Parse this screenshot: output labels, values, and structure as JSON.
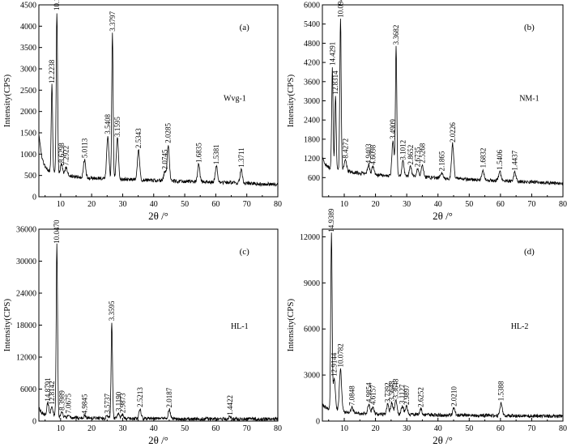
{
  "chart_data": [
    {
      "type": "line",
      "panel_label": "(a)",
      "sample_label": "Wvg-1",
      "xlabel": "2θ /°",
      "ylabel": "Intensity(CPS)",
      "xlim": [
        3,
        80
      ],
      "ylim": [
        0,
        4500
      ],
      "x_ticks": [
        10,
        20,
        30,
        40,
        50,
        60,
        70,
        80
      ],
      "y_ticks": [
        0,
        500,
        1000,
        1500,
        2000,
        2500,
        3000,
        3500,
        4000,
        4500
      ],
      "baseline": [
        [
          3,
          1500
        ],
        [
          4,
          900
        ],
        [
          5,
          700
        ],
        [
          6,
          620
        ],
        [
          8,
          570
        ],
        [
          10,
          540
        ],
        [
          12,
          510
        ],
        [
          15,
          470
        ],
        [
          18,
          450
        ],
        [
          20,
          440
        ],
        [
          23,
          430
        ],
        [
          26,
          420
        ],
        [
          30,
          410
        ],
        [
          34,
          400
        ],
        [
          38,
          390
        ],
        [
          42,
          380
        ],
        [
          46,
          370
        ],
        [
          50,
          360
        ],
        [
          55,
          350
        ],
        [
          60,
          340
        ],
        [
          65,
          330
        ],
        [
          70,
          320
        ],
        [
          75,
          300
        ],
        [
          80,
          290
        ]
      ],
      "peaks": [
        {
          "x": 7.2,
          "y": 2620,
          "label": "12.2238"
        },
        {
          "x": 8.8,
          "y": 4330,
          "label": "10.1509"
        },
        {
          "x": 10.3,
          "y": 760,
          "label": "8.6298"
        },
        {
          "x": 11.8,
          "y": 690,
          "label": "7.2922"
        },
        {
          "x": 17.7,
          "y": 870,
          "label": "5.0113"
        },
        {
          "x": 25.2,
          "y": 1430,
          "label": "3.5408"
        },
        {
          "x": 26.7,
          "y": 3840,
          "label": "3.3797"
        },
        {
          "x": 28.3,
          "y": 1370,
          "label": "3.1595"
        },
        {
          "x": 35.1,
          "y": 1100,
          "label": "2.5343"
        },
        {
          "x": 43.6,
          "y": 600,
          "label": "2.0745"
        },
        {
          "x": 44.7,
          "y": 1220,
          "label": "2.0285"
        },
        {
          "x": 54.5,
          "y": 760,
          "label": "1.6835"
        },
        {
          "x": 60.2,
          "y": 720,
          "label": "1.5381"
        },
        {
          "x": 68.2,
          "y": 650,
          "label": "1.3711"
        }
      ]
    },
    {
      "type": "line",
      "panel_label": "(b)",
      "sample_label": "NM-1",
      "xlabel": "2θ /°",
      "ylabel": "Intensity(CPS)",
      "xlim": [
        3,
        80
      ],
      "ylim": [
        0,
        6000
      ],
      "x_ticks": [
        10,
        20,
        30,
        40,
        50,
        60,
        70,
        80
      ],
      "y_ticks": [
        600,
        1200,
        1800,
        2400,
        3000,
        3600,
        4200,
        4800,
        5400,
        6000
      ],
      "baseline": [
        [
          3,
          1250
        ],
        [
          4,
          1000
        ],
        [
          5,
          920
        ],
        [
          6,
          880
        ],
        [
          8,
          850
        ],
        [
          10,
          820
        ],
        [
          12,
          780
        ],
        [
          15,
          740
        ],
        [
          18,
          700
        ],
        [
          20,
          680
        ],
        [
          23,
          660
        ],
        [
          26,
          650
        ],
        [
          30,
          640
        ],
        [
          34,
          620
        ],
        [
          38,
          600
        ],
        [
          42,
          580
        ],
        [
          46,
          560
        ],
        [
          50,
          540
        ],
        [
          55,
          520
        ],
        [
          60,
          500
        ],
        [
          65,
          480
        ],
        [
          70,
          460
        ],
        [
          75,
          440
        ],
        [
          80,
          420
        ]
      ],
      "peaks": [
        {
          "x": 6.2,
          "y": 4050,
          "label": "14.4291"
        },
        {
          "x": 7.2,
          "y": 3150,
          "label": "12.8314"
        },
        {
          "x": 8.8,
          "y": 5550,
          "label": "10.0944"
        },
        {
          "x": 10.4,
          "y": 1150,
          "label": "8.4272"
        },
        {
          "x": 17.8,
          "y": 980,
          "label": "4.9403"
        },
        {
          "x": 19.2,
          "y": 950,
          "label": "4.6098"
        },
        {
          "x": 25.6,
          "y": 1750,
          "label": "3.4909"
        },
        {
          "x": 26.6,
          "y": 4700,
          "label": "3.3682"
        },
        {
          "x": 28.8,
          "y": 1100,
          "label": "3.1012"
        },
        {
          "x": 31.2,
          "y": 950,
          "label": "2.8652"
        },
        {
          "x": 33.5,
          "y": 880,
          "label": "2.6735"
        },
        {
          "x": 35.0,
          "y": 1000,
          "label": "2.5268"
        },
        {
          "x": 41.2,
          "y": 750,
          "label": "2.1865"
        },
        {
          "x": 44.7,
          "y": 1650,
          "label": "2.0226"
        },
        {
          "x": 54.4,
          "y": 850,
          "label": "1.6832"
        },
        {
          "x": 59.8,
          "y": 790,
          "label": "1.5406"
        },
        {
          "x": 64.6,
          "y": 770,
          "label": "1.4437"
        }
      ]
    },
    {
      "type": "line",
      "panel_label": "(c)",
      "sample_label": "HL-1",
      "xlabel": "2θ /°",
      "ylabel": "Intensity(CPS)",
      "xlim": [
        3,
        80
      ],
      "ylim": [
        0,
        36000
      ],
      "x_ticks": [
        10,
        20,
        30,
        40,
        50,
        60,
        70,
        80
      ],
      "y_ticks": [
        0,
        6000,
        12000,
        18000,
        24000,
        30000,
        36000
      ],
      "baseline": [
        [
          3,
          2500
        ],
        [
          4,
          1500
        ],
        [
          5,
          1100
        ],
        [
          6,
          900
        ],
        [
          8,
          800
        ],
        [
          10,
          700
        ],
        [
          12,
          650
        ],
        [
          15,
          600
        ],
        [
          18,
          560
        ],
        [
          20,
          540
        ],
        [
          23,
          520
        ],
        [
          26,
          500
        ],
        [
          30,
          480
        ],
        [
          34,
          470
        ],
        [
          38,
          460
        ],
        [
          42,
          450
        ],
        [
          46,
          440
        ],
        [
          50,
          430
        ],
        [
          55,
          420
        ],
        [
          60,
          410
        ],
        [
          65,
          400
        ],
        [
          70,
          390
        ],
        [
          75,
          380
        ],
        [
          80,
          380
        ]
      ],
      "peaks": [
        {
          "x": 5.9,
          "y": 3400,
          "label": "14.8791"
        },
        {
          "x": 7.2,
          "y": 2800,
          "label": "12.8142"
        },
        {
          "x": 8.8,
          "y": 33000,
          "label": "10.0470"
        },
        {
          "x": 10.4,
          "y": 1700,
          "label": "8.3989"
        },
        {
          "x": 12.5,
          "y": 1100,
          "label": "7.0675"
        },
        {
          "x": 17.8,
          "y": 1000,
          "label": "4.9845"
        },
        {
          "x": 25.0,
          "y": 1100,
          "label": "3.5737"
        },
        {
          "x": 26.5,
          "y": 18500,
          "label": "3.3595"
        },
        {
          "x": 28.7,
          "y": 1500,
          "label": "3.1190"
        },
        {
          "x": 30.0,
          "y": 1200,
          "label": "2.9873"
        },
        {
          "x": 35.6,
          "y": 2300,
          "label": "2.5213"
        },
        {
          "x": 45.0,
          "y": 2200,
          "label": "2.0187"
        },
        {
          "x": 64.6,
          "y": 800,
          "label": "1.4422"
        }
      ]
    },
    {
      "type": "line",
      "panel_label": "(d)",
      "sample_label": "HL-2",
      "xlabel": "2θ /°",
      "ylabel": "Intensity(CPS)",
      "xlim": [
        3,
        80
      ],
      "ylim": [
        0,
        12500
      ],
      "x_ticks": [
        10,
        20,
        30,
        40,
        50,
        60,
        70,
        80
      ],
      "y_ticks": [
        0,
        3000,
        6000,
        9000,
        12000
      ],
      "baseline": [
        [
          3,
          1100
        ],
        [
          4,
          900
        ],
        [
          5,
          800
        ],
        [
          6,
          800
        ],
        [
          8,
          700
        ],
        [
          10,
          600
        ],
        [
          12,
          550
        ],
        [
          15,
          500
        ],
        [
          18,
          470
        ],
        [
          20,
          450
        ],
        [
          23,
          440
        ],
        [
          26,
          430
        ],
        [
          30,
          420
        ],
        [
          34,
          410
        ],
        [
          38,
          400
        ],
        [
          42,
          390
        ],
        [
          46,
          380
        ],
        [
          50,
          370
        ],
        [
          55,
          360
        ],
        [
          60,
          350
        ],
        [
          65,
          340
        ],
        [
          70,
          330
        ],
        [
          75,
          320
        ],
        [
          80,
          300
        ]
      ],
      "peaks": [
        {
          "x": 5.9,
          "y": 12200,
          "label": "14.9389"
        },
        {
          "x": 6.8,
          "y": 2800,
          "label": "12.9144"
        },
        {
          "x": 8.8,
          "y": 3400,
          "label": "10.0782"
        },
        {
          "x": 12.5,
          "y": 900,
          "label": "7.0848"
        },
        {
          "x": 17.9,
          "y": 1100,
          "label": "4.9854"
        },
        {
          "x": 19.2,
          "y": 950,
          "label": "4.6157"
        },
        {
          "x": 23.9,
          "y": 1100,
          "label": "3.7392"
        },
        {
          "x": 25.2,
          "y": 1200,
          "label": "3.5648"
        },
        {
          "x": 26.5,
          "y": 1350,
          "label": "3.3648"
        },
        {
          "x": 28.6,
          "y": 1000,
          "label": "3.1127"
        },
        {
          "x": 29.9,
          "y": 950,
          "label": "2.9897"
        },
        {
          "x": 34.5,
          "y": 800,
          "label": "2.6252"
        },
        {
          "x": 45.1,
          "y": 850,
          "label": "2.0210"
        },
        {
          "x": 60.2,
          "y": 1200,
          "label": "1.5388"
        }
      ]
    }
  ]
}
